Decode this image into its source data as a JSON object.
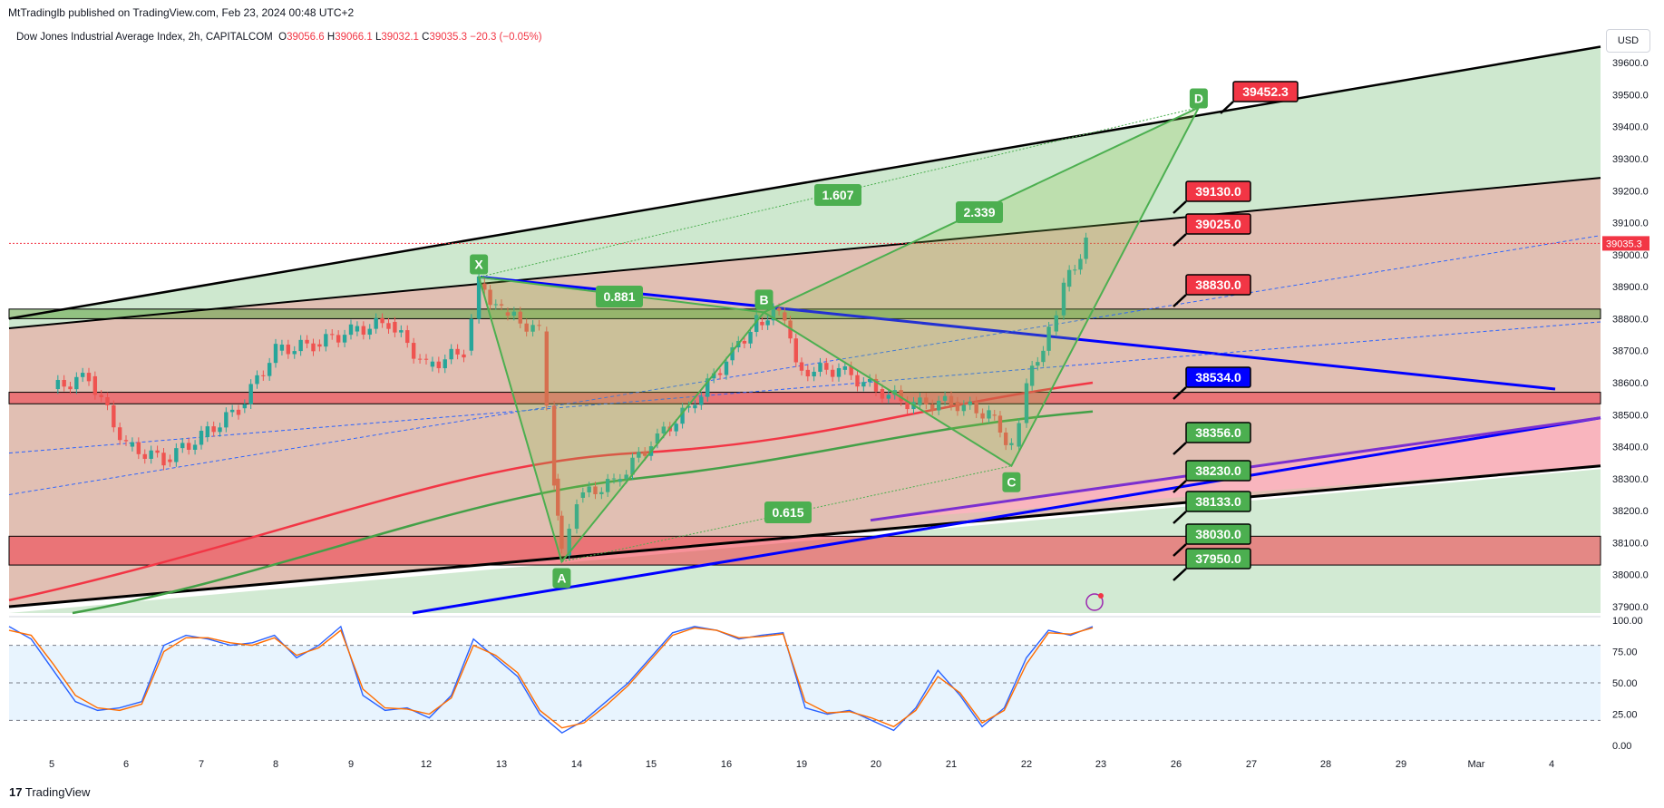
{
  "header": {
    "published": "MtTradinglb published on TradingView.com, Feb 23, 2024 00:48 UTC+2",
    "instrument": "Dow Jones Industrial Average Index, 2h, CAPITALCOM",
    "ohlc": {
      "o": "39056.6",
      "h": "39066.1",
      "l": "39032.1",
      "c": "39035.3",
      "chg": "−20.3 (−0.05%)"
    },
    "currency": "USD",
    "brand": "TradingView"
  },
  "colors": {
    "bull": "#26a69a",
    "bear": "#ef5350",
    "harmonic": "#4caf50",
    "label_red": "#f23645",
    "label_green": "#4caf50",
    "label_blue": "#0000ff",
    "channel_green": "#a5d6a7",
    "channel_brown": "#d7a99a",
    "sma_red": "#f23645",
    "sma_green": "#43a047",
    "stoch_k": "#2962ff",
    "stoch_d": "#ff6d00"
  },
  "chart_data": [
    {
      "type": "candlestick",
      "title": "Dow Jones Industrial Average Index, 2h, CAPITALCOM",
      "x_tick_labels": [
        "5",
        "6",
        "7",
        "8",
        "9",
        "12",
        "13",
        "14",
        "15",
        "16",
        "19",
        "20",
        "21",
        "22",
        "23",
        "26",
        "27",
        "28",
        "29",
        "Mar",
        "4"
      ],
      "y_tick_labels": [
        "39600.0",
        "39500.0",
        "39400.0",
        "39300.0",
        "39200.0",
        "39100.0",
        "39000.0",
        "38900.0",
        "38800.0",
        "38700.0",
        "38600.0",
        "38500.0",
        "38400.0",
        "38300.0",
        "38200.0",
        "38100.0",
        "38000.0",
        "37900.0"
      ],
      "ylim": [
        37880,
        39660
      ],
      "last_price": "39035.3",
      "close_path": [
        [
          "5",
          38580
        ],
        [
          "5.5",
          38620
        ],
        [
          "6",
          38400
        ],
        [
          "6.5",
          38360
        ],
        [
          "7",
          38430
        ],
        [
          "7.5",
          38520
        ],
        [
          "8",
          38700
        ],
        [
          "8.5",
          38720
        ],
        [
          "9",
          38760
        ],
        [
          "9.5",
          38790
        ],
        [
          "12",
          38650
        ],
        [
          "12.5",
          38700
        ],
        [
          "12.7",
          38910
        ],
        [
          "13",
          38820
        ],
        [
          "13.5",
          38760
        ],
        [
          "13.7",
          38300
        ],
        [
          "13.8",
          38060
        ],
        [
          "14",
          38240
        ],
        [
          "14.5",
          38290
        ],
        [
          "15",
          38410
        ],
        [
          "15.5",
          38520
        ],
        [
          "16",
          38670
        ],
        [
          "16.4",
          38790
        ],
        [
          "16.7",
          38820
        ],
        [
          "19",
          38640
        ],
        [
          "19.5",
          38640
        ],
        [
          "20",
          38580
        ],
        [
          "20.5",
          38530
        ],
        [
          "21",
          38540
        ],
        [
          "21.5",
          38500
        ],
        [
          "21.8",
          38400
        ],
        [
          "22",
          38590
        ],
        [
          "22.3",
          38760
        ],
        [
          "22.5",
          38900
        ],
        [
          "22.8",
          39035.3
        ]
      ],
      "harmonic_pattern": {
        "points": [
          {
            "label": "X",
            "x": "12.7",
            "y": 38930
          },
          {
            "label": "A",
            "x": "13.8",
            "y": 38040
          },
          {
            "label": "B",
            "x": "16.5",
            "y": 38820
          },
          {
            "label": "C",
            "x": "21.8",
            "y": 38340
          },
          {
            "label": "D",
            "x": "26.3",
            "y": 39460
          }
        ],
        "ratios": [
          "0.881",
          "0.615",
          "1.607",
          "2.339"
        ]
      },
      "price_labels": [
        {
          "value": "39452.3",
          "color": "red"
        },
        {
          "value": "39130.0",
          "color": "red"
        },
        {
          "value": "39025.0",
          "color": "red"
        },
        {
          "value": "38830.0",
          "color": "red"
        },
        {
          "value": "38534.0",
          "color": "blue"
        },
        {
          "value": "38356.0",
          "color": "green"
        },
        {
          "value": "38230.0",
          "color": "green"
        },
        {
          "value": "38133.0",
          "color": "green"
        },
        {
          "value": "38030.0",
          "color": "green"
        },
        {
          "value": "37950.0",
          "color": "green"
        }
      ],
      "zones": [
        {
          "from": 38800,
          "to": 38830,
          "color": "green"
        },
        {
          "from": 38534,
          "to": 38570,
          "color": "red"
        },
        {
          "from": 38030,
          "to": 38120,
          "color": "red"
        }
      ]
    },
    {
      "type": "line",
      "title": "",
      "y_tick_labels": [
        "100.00",
        "75.00",
        "50.00",
        "25.00",
        "0.00"
      ],
      "ylim": [
        0,
        100
      ],
      "band": [
        20,
        80
      ],
      "series": [
        {
          "values": [
            95,
            85,
            60,
            35,
            28,
            30,
            35,
            80,
            88,
            85,
            80,
            82,
            88,
            70,
            80,
            95,
            40,
            28,
            30,
            22,
            40,
            85,
            70,
            55,
            25,
            10,
            20,
            35,
            50,
            70,
            90,
            95,
            92,
            85,
            88,
            90,
            30,
            25,
            28,
            20,
            12,
            30,
            60,
            40,
            15,
            30,
            70,
            92,
            88,
            95
          ]
        },
        {
          "values": [
            92,
            88,
            65,
            40,
            30,
            28,
            33,
            75,
            86,
            86,
            82,
            80,
            86,
            72,
            78,
            92,
            45,
            30,
            29,
            25,
            38,
            80,
            72,
            58,
            28,
            14,
            18,
            32,
            48,
            68,
            88,
            94,
            92,
            86,
            87,
            89,
            35,
            26,
            27,
            22,
            15,
            28,
            55,
            42,
            18,
            28,
            65,
            90,
            89,
            94
          ]
        }
      ]
    }
  ]
}
